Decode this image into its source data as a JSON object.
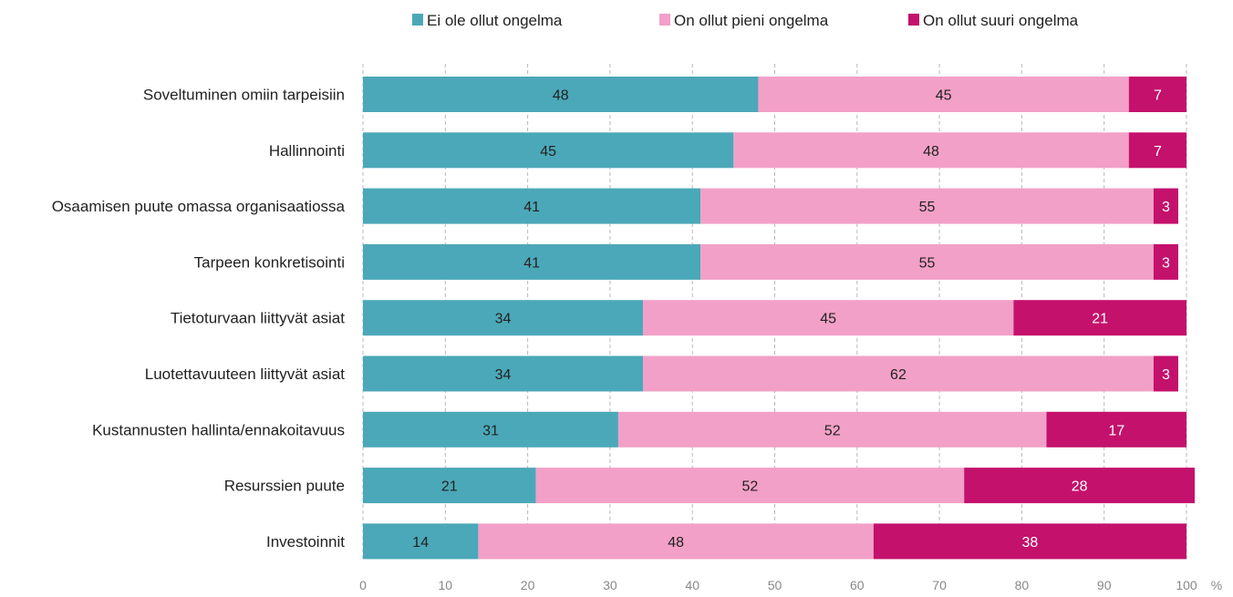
{
  "chart_data": {
    "type": "bar",
    "orientation": "horizontal",
    "stacked": true,
    "categories": [
      "Soveltuminen omiin tarpeisiin",
      "Hallinnointi",
      "Osaamisen puute omassa organisaatiossa",
      "Tarpeen konkretisointi",
      "Tietoturvaan liittyvät asiat",
      "Luotettavuuteen liittyvät asiat",
      "Kustannusten hallinta/ennakoitavuus",
      "Resurssien puute",
      "Investoinnit"
    ],
    "series": [
      {
        "name": "Ei ole ollut ongelma",
        "color": "#4ba8b8",
        "label_color": "#222222",
        "values": [
          48,
          45,
          41,
          41,
          34,
          34,
          31,
          21,
          14
        ]
      },
      {
        "name": "On ollut pieni ongelma",
        "color": "#f2a0c8",
        "label_color": "#222222",
        "values": [
          45,
          48,
          55,
          55,
          45,
          62,
          52,
          52,
          48
        ]
      },
      {
        "name": "On ollut suuri ongelma",
        "color": "#c4116c",
        "label_color": "#ffffff",
        "values": [
          7,
          7,
          3,
          3,
          21,
          3,
          17,
          28,
          38
        ]
      }
    ],
    "xlim": [
      0,
      100
    ],
    "xticks": [
      "0",
      "10",
      "20",
      "30",
      "40",
      "50",
      "60",
      "70",
      "80",
      "90",
      "100"
    ],
    "x_unit": "%",
    "grid": "vertical dashed",
    "legend_position": "top"
  }
}
